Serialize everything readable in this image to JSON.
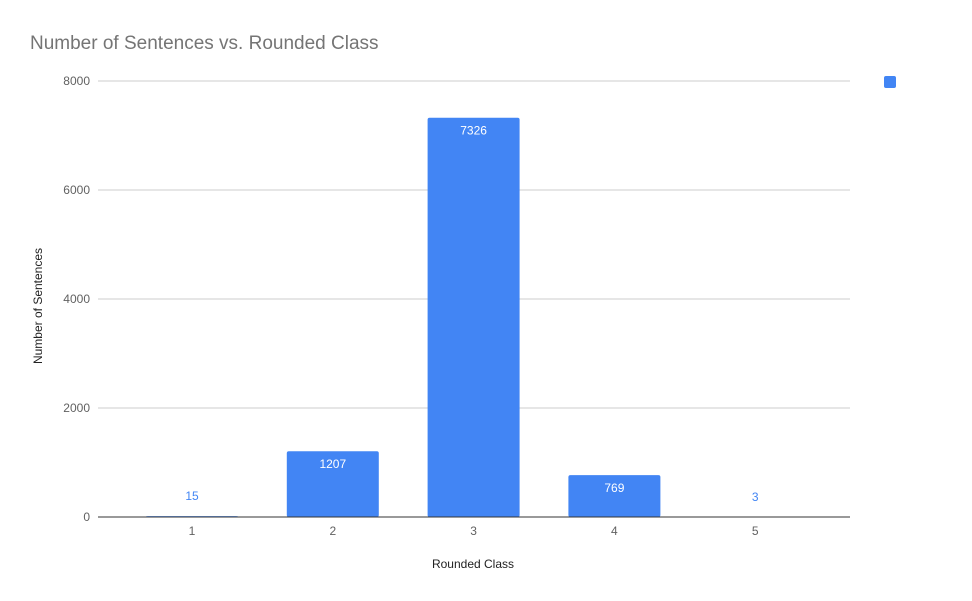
{
  "chart_data": {
    "type": "bar",
    "title": "Number of Sentences vs. Rounded Class",
    "xlabel": "Rounded Class",
    "ylabel": "Number of Sentences",
    "categories": [
      "1",
      "2",
      "3",
      "4",
      "5"
    ],
    "series": [
      {
        "values": [
          15,
          1207,
          7326,
          769,
          3
        ]
      }
    ],
    "data_labels": [
      "15",
      "1207",
      "7326",
      "769",
      "3"
    ],
    "y_ticks": [
      "0",
      "2000",
      "4000",
      "6000",
      "8000"
    ],
    "ylim": [
      0,
      8000
    ],
    "grid": true,
    "legend": "right",
    "colors": {
      "bar": "#4285f4",
      "grid": "#cccccc",
      "axis": "#333333"
    }
  }
}
